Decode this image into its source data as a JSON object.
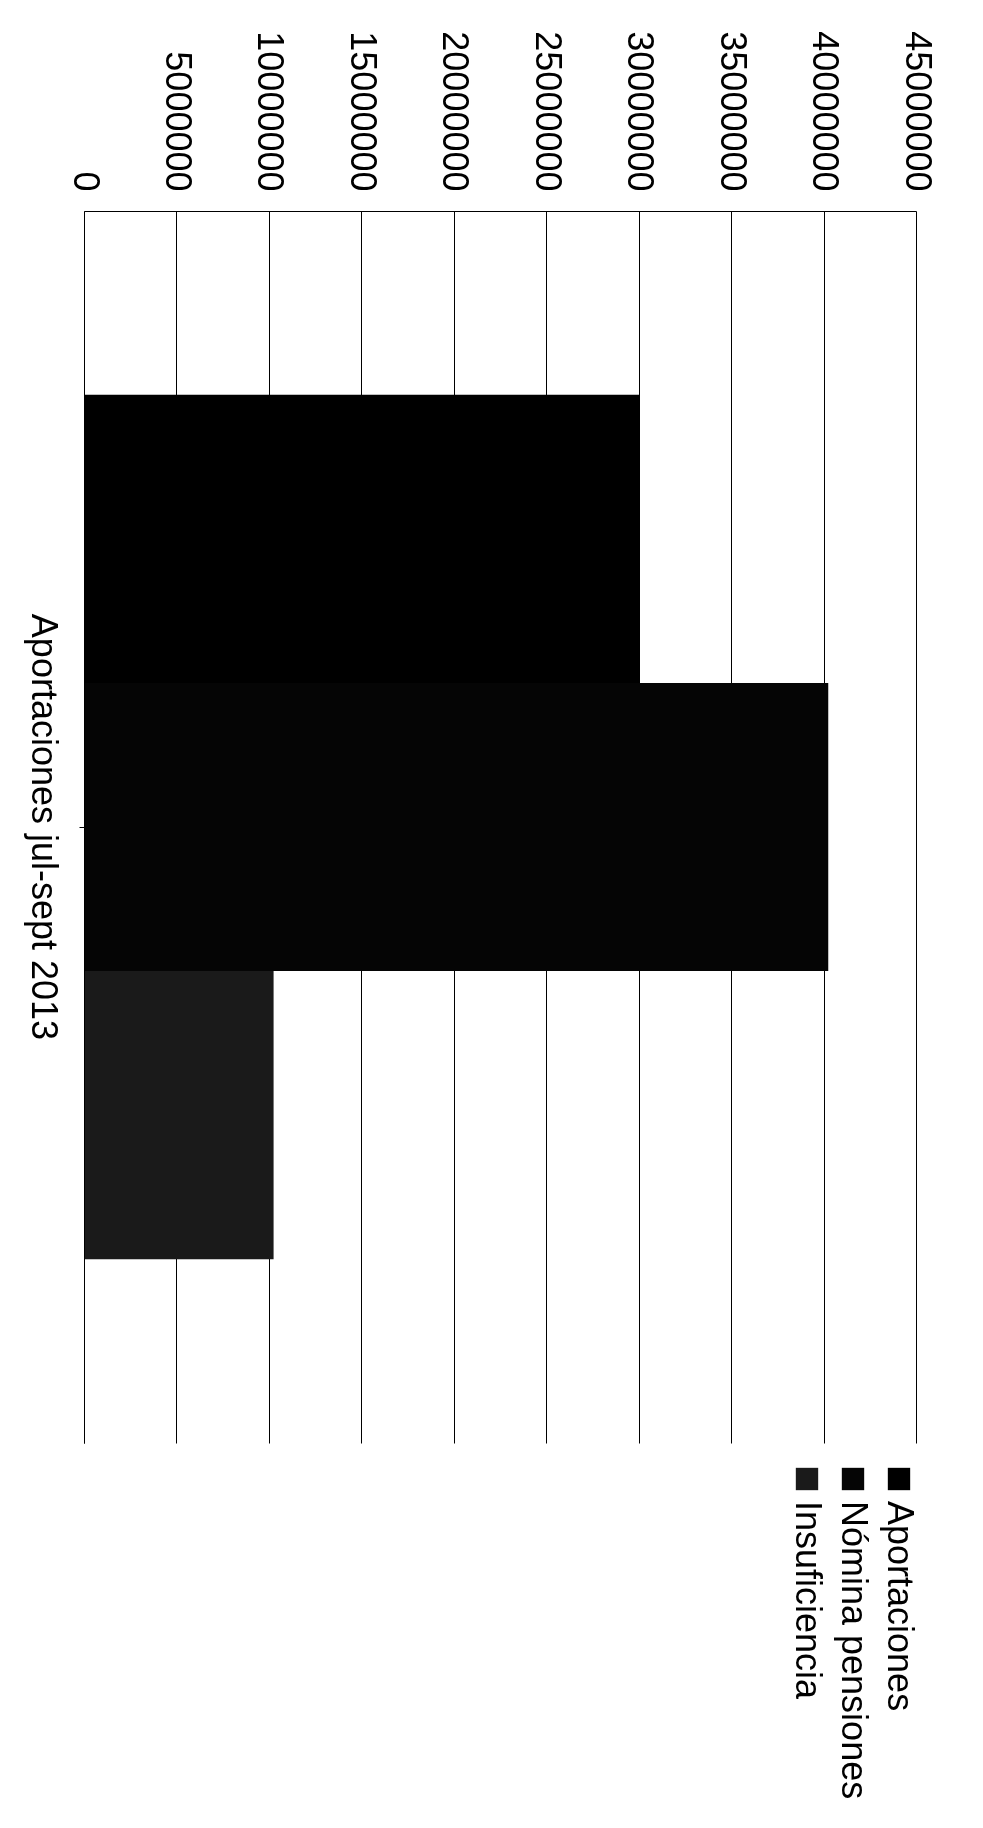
{
  "chart_data": {
    "type": "bar",
    "orientation": "horizontal",
    "categories": [
      "Aportaciones jul-sept 2013"
    ],
    "series": [
      {
        "name": "Aportaciones",
        "color": "#000000",
        "values": [
          30000000
        ]
      },
      {
        "name": "Nómina pensiones",
        "color": "#050505",
        "values": [
          40200000
        ]
      },
      {
        "name": "Insuficiencia",
        "color": "#1a1a1a",
        "values": [
          10200000
        ]
      }
    ],
    "xlim": [
      0,
      45000000
    ],
    "xticks": [
      0,
      5000000,
      10000000,
      15000000,
      20000000,
      25000000,
      30000000,
      35000000,
      40000000,
      45000000
    ],
    "grid": true,
    "legend": "bottom"
  }
}
